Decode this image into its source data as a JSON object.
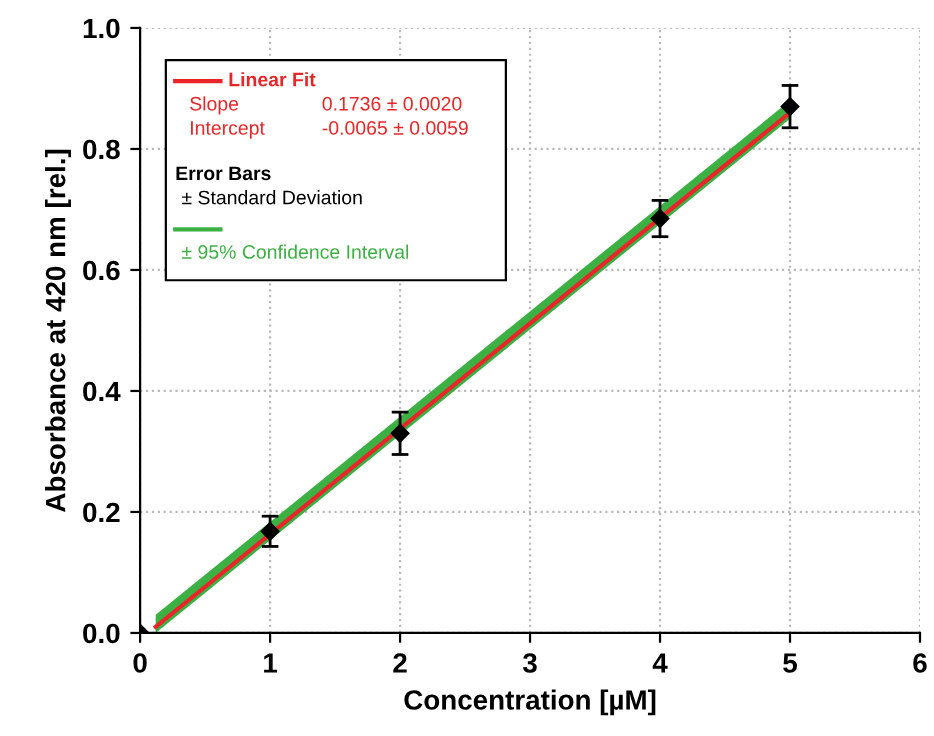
{
  "chart_data": {
    "type": "line",
    "xlabel": "Concentration [µM]",
    "ylabel": "Absorbance at 420 nm [rel.]",
    "xlim": [
      0,
      6
    ],
    "ylim": [
      0,
      1.0
    ],
    "xticks": [
      0,
      1,
      2,
      3,
      4,
      5,
      6
    ],
    "yticks": [
      {
        "value": 0,
        "label": "0.0"
      },
      0.2,
      0.4,
      0.6,
      0.8,
      {
        "value": 1,
        "label": "1.0"
      }
    ],
    "grid": true,
    "legend": "top left",
    "series": [
      {
        "name": "Linear Fit",
        "color": "#e8262a",
        "x": [
          0.12,
          5
        ],
        "values": [
          0.01,
          0.86
        ],
        "lower": [
          0.0,
          0.85
        ],
        "upper": [
          0.03,
          0.88
        ]
      },
      {
        "type": "scatter",
        "marker": "diamond",
        "color": "#000000",
        "x": [
          0,
          1,
          2,
          4,
          5
        ],
        "values": [
          0,
          0.168,
          0.33,
          0.685,
          0.87
        ],
        "errors": [
          null,
          0.025,
          0.035,
          0.03,
          0.035
        ]
      }
    ],
    "annotations": [
      "Slope",
      "0.1736 ± 0.0020",
      "Intercept",
      "-0.0065 ± 0.0059",
      "Error Bars",
      "± Standard Deviation",
      "± 95% Confidence Interval"
    ]
  }
}
